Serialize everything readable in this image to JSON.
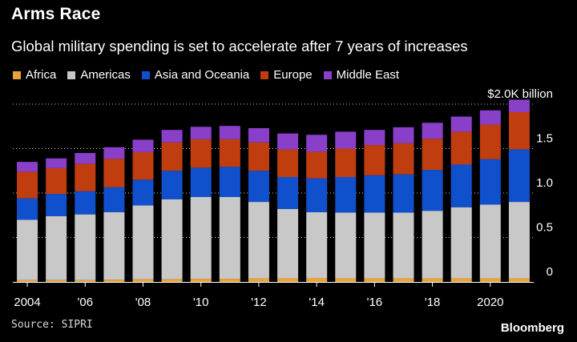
{
  "chart_data": {
    "type": "bar",
    "stacked": true,
    "title": "Arms Race",
    "subtitle": "Global military spending is set to accelerate after 7 years of increases",
    "ylabel_unit": "$2.0K billion",
    "ylim": [
      0,
      2.0
    ],
    "y_ticks": [
      "0",
      "0.5",
      "1.0",
      "1.5"
    ],
    "x_tick_labels": [
      "2004",
      "'06",
      "'08",
      "'10",
      "'12",
      "'14",
      "'16",
      "'18",
      "2020"
    ],
    "categories": [
      "2004",
      "2005",
      "2006",
      "2007",
      "2008",
      "2009",
      "2010",
      "2011",
      "2012",
      "2013",
      "2014",
      "2015",
      "2016",
      "2017",
      "2018",
      "2019",
      "2020",
      "2021"
    ],
    "series": [
      {
        "name": "Africa",
        "color": "#e8a33a",
        "values": [
          0.02,
          0.02,
          0.02,
          0.025,
          0.03,
          0.03,
          0.035,
          0.035,
          0.04,
          0.04,
          0.045,
          0.04,
          0.04,
          0.04,
          0.04,
          0.04,
          0.04,
          0.04
        ]
      },
      {
        "name": "Americas",
        "color": "#c8c8c8",
        "values": [
          0.68,
          0.72,
          0.74,
          0.76,
          0.83,
          0.9,
          0.92,
          0.92,
          0.86,
          0.78,
          0.74,
          0.74,
          0.74,
          0.74,
          0.76,
          0.8,
          0.83,
          0.86
        ]
      },
      {
        "name": "Asia and Oceania",
        "color": "#1150cc",
        "values": [
          0.24,
          0.25,
          0.26,
          0.28,
          0.29,
          0.32,
          0.33,
          0.34,
          0.35,
          0.36,
          0.38,
          0.4,
          0.42,
          0.43,
          0.46,
          0.48,
          0.51,
          0.59
        ]
      },
      {
        "name": "Europe",
        "color": "#c03d10",
        "values": [
          0.3,
          0.29,
          0.31,
          0.32,
          0.31,
          0.32,
          0.32,
          0.31,
          0.32,
          0.31,
          0.3,
          0.32,
          0.34,
          0.35,
          0.35,
          0.37,
          0.39,
          0.42
        ]
      },
      {
        "name": "Middle East",
        "color": "#8a3fc9",
        "values": [
          0.11,
          0.11,
          0.12,
          0.13,
          0.14,
          0.14,
          0.14,
          0.15,
          0.16,
          0.18,
          0.19,
          0.19,
          0.17,
          0.18,
          0.18,
          0.17,
          0.16,
          0.14
        ]
      }
    ]
  },
  "source": "Source: SIPRI",
  "brand": "Bloomberg"
}
